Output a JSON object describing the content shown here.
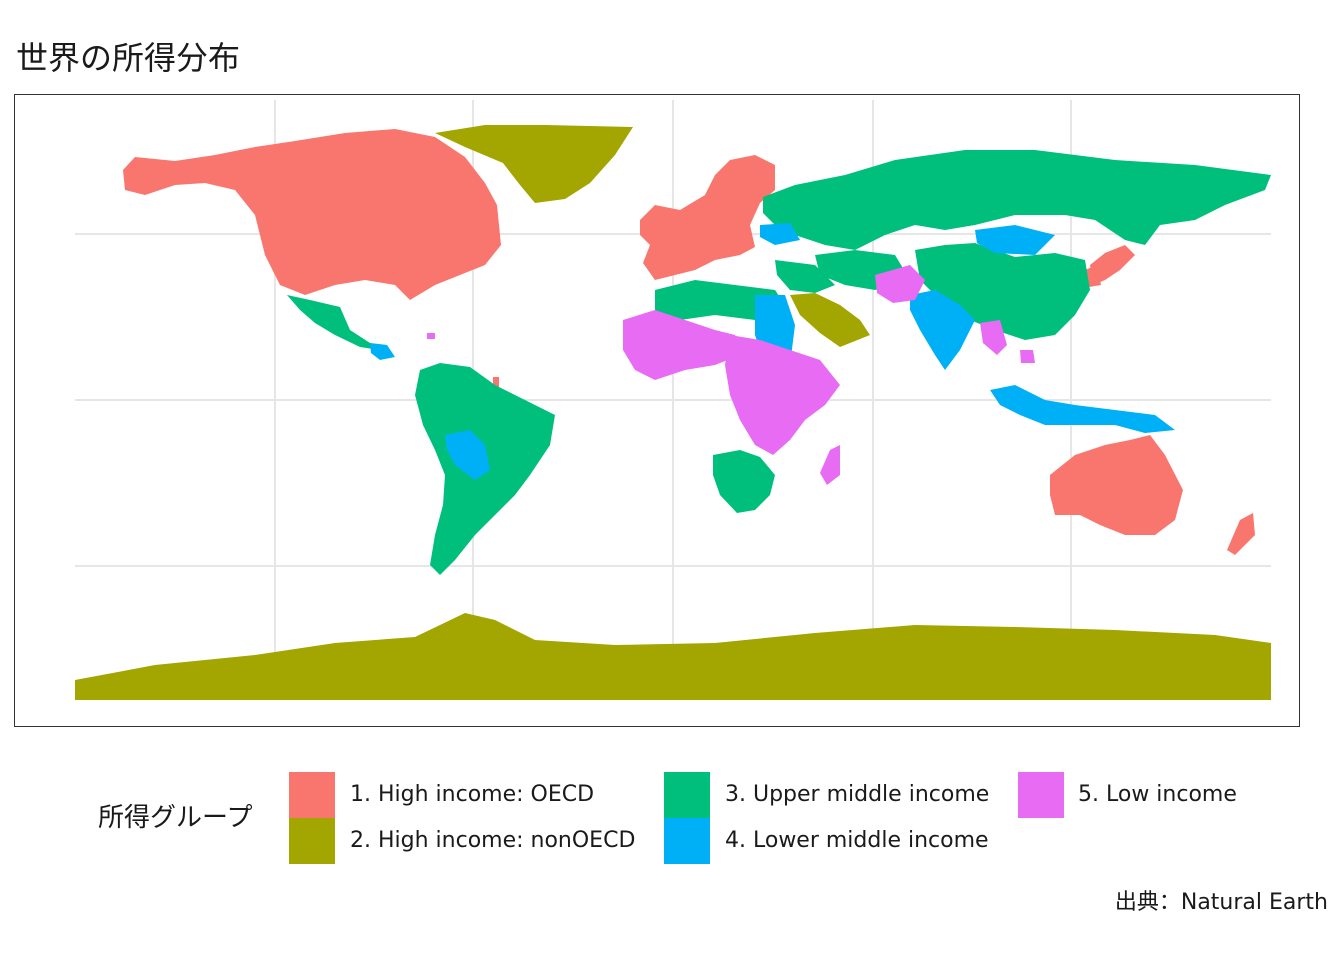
{
  "title": "世界の所得分布",
  "caption": "出典：Natural Earth",
  "map": {
    "graticule": true,
    "background": "#ffffff",
    "gridline_color": "#e6e6e6"
  },
  "legend": {
    "title": "所得グループ",
    "placement": "bottom",
    "items": [
      {
        "label": "1. High income: OECD",
        "color": "#F8766D"
      },
      {
        "label": "2. High income: nonOECD",
        "color": "#A3A500"
      },
      {
        "label": "3. Upper middle income",
        "color": "#00BF7D"
      },
      {
        "label": "4. Lower middle income",
        "color": "#00B0F6"
      },
      {
        "label": "5. Low income",
        "color": "#E76BF3"
      }
    ]
  }
}
